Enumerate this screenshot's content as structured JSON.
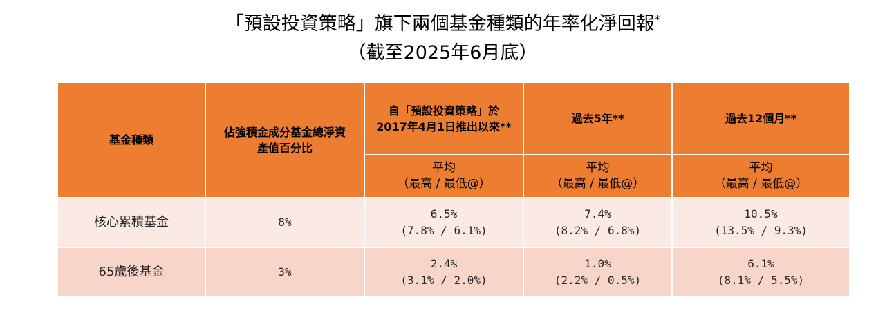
{
  "title": {
    "line1": "「預設投資策略」旗下兩個基金種類的年率化淨回報",
    "line1_mark": "*",
    "line2": "（截至2025年6月底）"
  },
  "table": {
    "headers": {
      "fund_type": "基金種類",
      "weight": "佔強積金成分基金總淨資產值百分比",
      "since_launch": "自「預設投資策略」於2017年4月1日推出以來**",
      "past_5y": "過去5年**",
      "past_12m": "過去12個月**"
    },
    "sub_header": {
      "avg": "平均",
      "range": "（最高 / 最低@）"
    },
    "rows": [
      {
        "fund": "核心累積基金",
        "weight": "8%",
        "since_launch": {
          "avg": "6.5%",
          "range": "(7.8% / 6.1%)"
        },
        "past_5y": {
          "avg": "7.4%",
          "range": "(8.2% / 6.8%)"
        },
        "past_12m": {
          "avg": "10.5%",
          "range": "(13.5% / 9.3%)"
        }
      },
      {
        "fund": "65歲後基金",
        "weight": "3%",
        "since_launch": {
          "avg": "2.4%",
          "range": "(3.1% / 2.0%)"
        },
        "past_5y": {
          "avg": "1.0%",
          "range": "(2.2% / 0.5%)"
        },
        "past_12m": {
          "avg": "6.1%",
          "range": "(8.1% / 5.5%)"
        }
      }
    ]
  },
  "colors": {
    "header": "#ed7d31",
    "row_light": "#fbe9e4",
    "row_dark": "#f8d5c9"
  }
}
